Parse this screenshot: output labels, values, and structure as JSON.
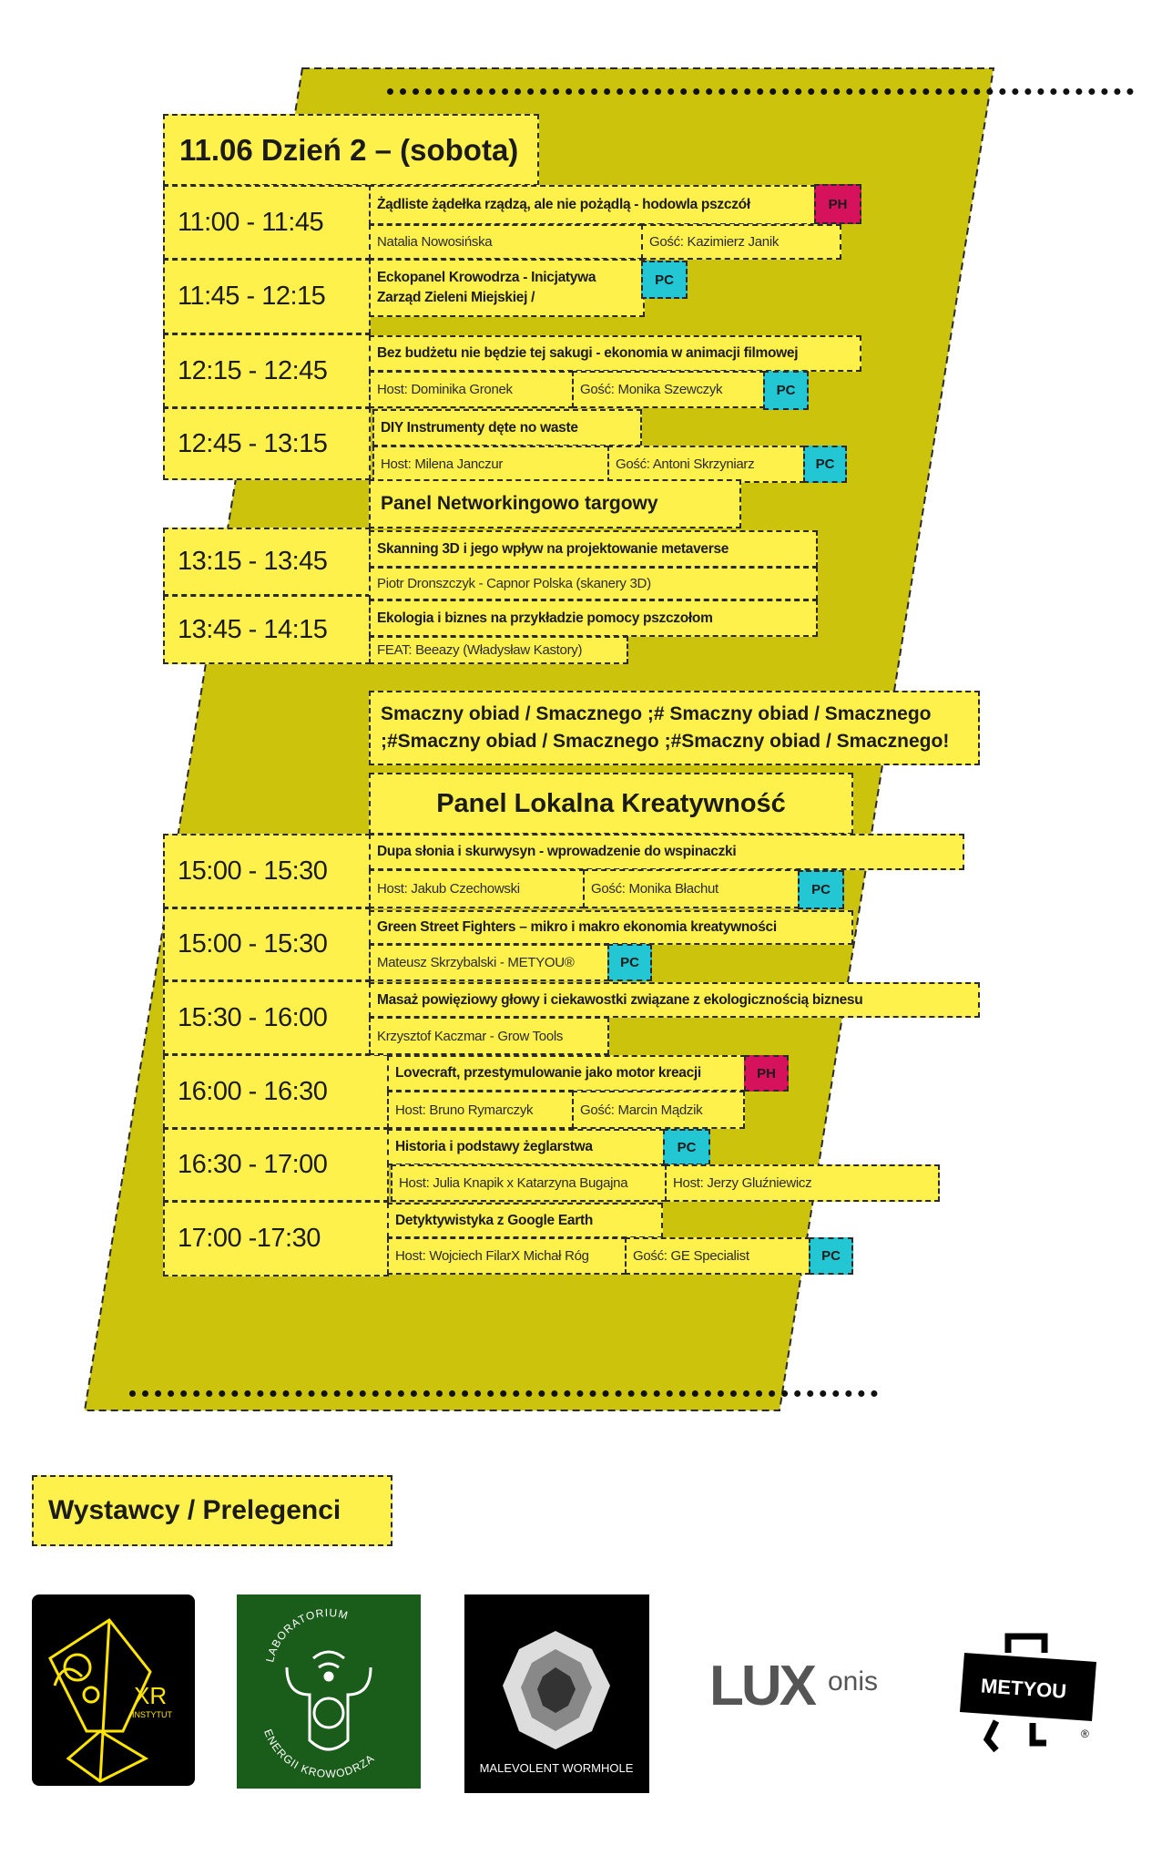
{
  "header": {
    "title": "11.06  Dzień 2 – (sobota)"
  },
  "colors": {
    "yellow": "#FFF14B",
    "olive": "#CCC30C",
    "ph": "#D6125C",
    "pc": "#22C7D3"
  },
  "schedule": [
    {
      "time": "11:00 - 11:45",
      "title": "Żądliste żądełka rządzą, ale nie pożądlą - hodowla pszczół",
      "badge": "PH",
      "people": [
        "Natalia Nowosińska",
        "Gość: Kazimierz Janik"
      ]
    },
    {
      "time": "11:45 - 12:15",
      "title_lines": [
        "Eckopanel Krowodrza - Inicjatywa",
        "Zarząd Zieleni Miejskiej /"
      ],
      "badge": "PC"
    },
    {
      "time": "12:15 - 12:45",
      "title": "Bez budżetu nie będzie tej sakugi - ekonomia w animacji filmowej",
      "badge": "PC",
      "people": [
        "Host: Dominika Gronek",
        "Gość: Monika Szewczyk"
      ]
    },
    {
      "time": "12:45 - 13:15",
      "title": "DIY Instrumenty dęte no waste",
      "badge": "PC",
      "people": [
        "Host: Milena Janczur",
        "Gość: Antoni Skrzyniarz"
      ]
    },
    {
      "time": "13:15 - 13:45",
      "title": "Skanning 3D i jego wpływ na projektowanie metaverse",
      "people": [
        "Piotr Dronszczyk - Capnor Polska (skanery 3D)"
      ]
    },
    {
      "time": "13:45 - 14:15",
      "title": "Ekologia i biznes na przykładzie pomocy pszczołom",
      "people": [
        "FEAT: Beeazy (Władysław Kastory)"
      ]
    },
    {
      "time": "15:00 - 15:30",
      "title": "Dupa słonia i skurwysyn - wprowadzenie do wspinaczki",
      "badge": "PC",
      "people": [
        "Host: Jakub Czechowski",
        "Gość: Monika Błachut"
      ]
    },
    {
      "time": "15:00 - 15:30",
      "title": "Green Street Fighters – mikro i makro ekonomia kreatywności",
      "badge": "PC",
      "people": [
        "Mateusz Skrzybalski - METYOU®"
      ]
    },
    {
      "time": "15:30 - 16:00",
      "title": "Masaż powięziowy głowy i ciekawostki związane z ekologicznością biznesu",
      "people": [
        "Krzysztof Kaczmar  - Grow Tools"
      ]
    },
    {
      "time": "16:00 - 16:30",
      "title": "Lovecraft, przestymulowanie jako motor kreacji",
      "badge": "PH",
      "people": [
        "Host: Bruno Rymarczyk",
        "Gość: Marcin Mądzik"
      ]
    },
    {
      "time": "16:30 - 17:00",
      "title": "Historia i  podstawy żeglarstwa",
      "badge": "PC",
      "people": [
        "Host: Julia Knapik x Katarzyna Bugajna",
        "Host: Jerzy Gluźniewicz"
      ]
    },
    {
      "time": "17:00 -17:30",
      "title": "Detyktywistyka z Google Earth",
      "badge": "PC",
      "people": [
        "Host: Wojciech FilarX Michał Róg",
        "Gość: GE Specialist"
      ]
    }
  ],
  "panels": {
    "networking": "Panel Networkingowo targowy",
    "lunch_lines": [
      "Smaczny obiad / Smacznego ;# Smaczny obiad / Smacznego",
      ";#Smaczny obiad / Smacznego ;#Smaczny obiad / Smacznego!"
    ],
    "local": "Panel Lokalna Kreatywność"
  },
  "exhibitors": {
    "title": "Wystawcy / Prelegenci",
    "logos": [
      {
        "name": "XR Instytut",
        "text": "XR",
        "sub": "INSTYTUT"
      },
      {
        "name": "Laboratorium Energii Krowodrza",
        "top": "LABORATORIUM",
        "bottom": "ENERGII KROWODRZA"
      },
      {
        "name": "Malevolent Wormhole",
        "text": "Malevolent Wormhole"
      },
      {
        "name": "Luxonis",
        "text": "LUX",
        "sub": "onis"
      },
      {
        "name": "METYOU",
        "text": "METYOU",
        "mark": "®"
      }
    ]
  }
}
